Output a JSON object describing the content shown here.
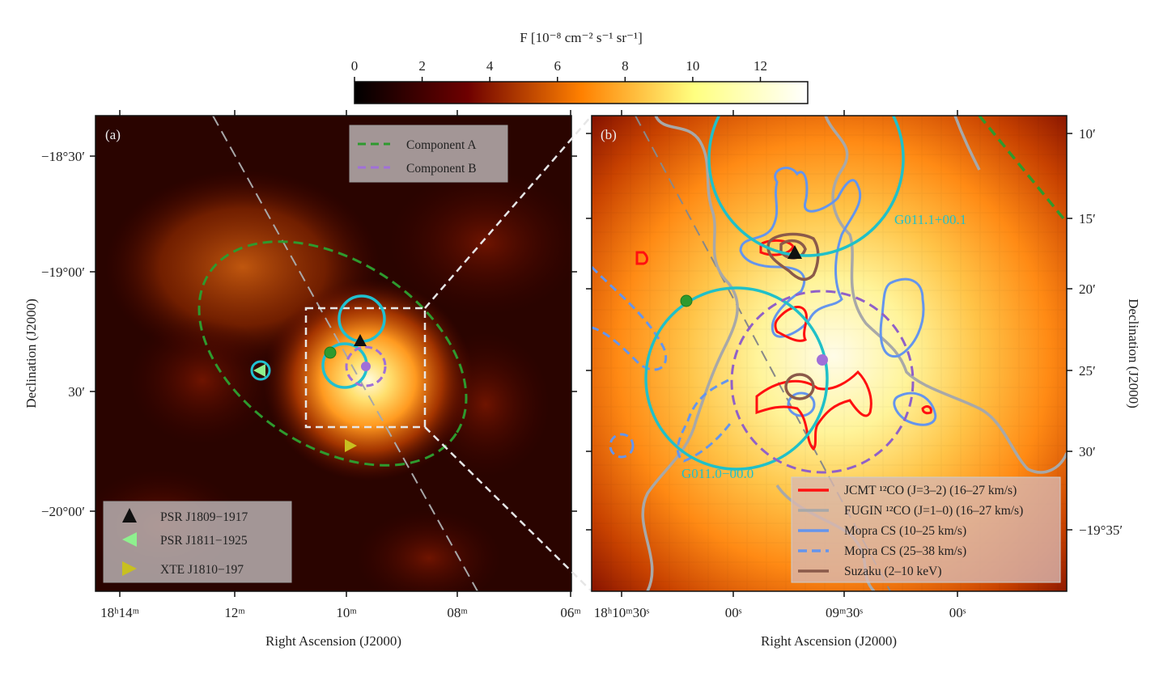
{
  "chart_data": {
    "type": "heatmap",
    "colorbar": {
      "label": "F [10⁻⁸ cm⁻² s⁻¹ sr⁻¹]",
      "ticks": [
        "0",
        "2",
        "4",
        "6",
        "8",
        "10",
        "12"
      ],
      "range": [
        0,
        13.4
      ],
      "colormap": [
        "#000000",
        "#7a0000",
        "#ff8000",
        "#ffff80",
        "#ffffff"
      ]
    },
    "panels": [
      {
        "label": "(a)",
        "xlabel": "Right Ascension (J2000)",
        "ylabel": "Declination (J2000)",
        "xticks": [
          "18ʰ14ᵐ",
          "12ᵐ",
          "10ᵐ",
          "08ᵐ",
          "06ᵐ"
        ],
        "yticks": [
          "−18°30′",
          "−19°00′",
          "30′",
          "−20°00′"
        ],
        "legend_components": [
          {
            "label": "Component A",
            "style": "dashed",
            "color": "#2e9a2e"
          },
          {
            "label": "Component B",
            "style": "dashed",
            "color": "#a070d8"
          }
        ],
        "legend_sources": [
          {
            "label": "PSR J1809−1917",
            "marker": "triangle-up",
            "color": "#111111"
          },
          {
            "label": "PSR J1811−1925",
            "marker": "triangle-left",
            "color": "#8ef08e"
          },
          {
            "label": "XTE J1810−197",
            "marker": "triangle-right",
            "color": "#c8c020"
          }
        ]
      },
      {
        "label": "(b)",
        "xlabel": "Right Ascension (J2000)",
        "ylabel": "Declination (J2000)",
        "xticks": [
          "18ʰ10ᵐ30ˢ",
          "00ˢ",
          "09ᵐ30ˢ",
          "00ˢ"
        ],
        "yticks": [
          "10′",
          "15′",
          "20′",
          "25′",
          "30′",
          "−19°35′"
        ],
        "region_labels": [
          "G011.1+00.1",
          "G011.0−00.0"
        ],
        "legend": [
          {
            "label": "JCMT ¹²CO (J=3–2) (16–27 km/s)",
            "style": "solid",
            "color": "#ff1010"
          },
          {
            "label": "FUGIN ¹²CO (J=1–0) (16–27 km/s)",
            "style": "solid",
            "color": "#a8a8a8"
          },
          {
            "label": "Mopra CS (10–25 km/s)",
            "style": "solid",
            "color": "#6495ed"
          },
          {
            "label": "Mopra CS (25–38 km/s)",
            "style": "dashed",
            "color": "#6495ed"
          },
          {
            "label": "Suzaku (2–10 keV)",
            "style": "solid",
            "color": "#8b5a4a"
          }
        ]
      }
    ]
  }
}
